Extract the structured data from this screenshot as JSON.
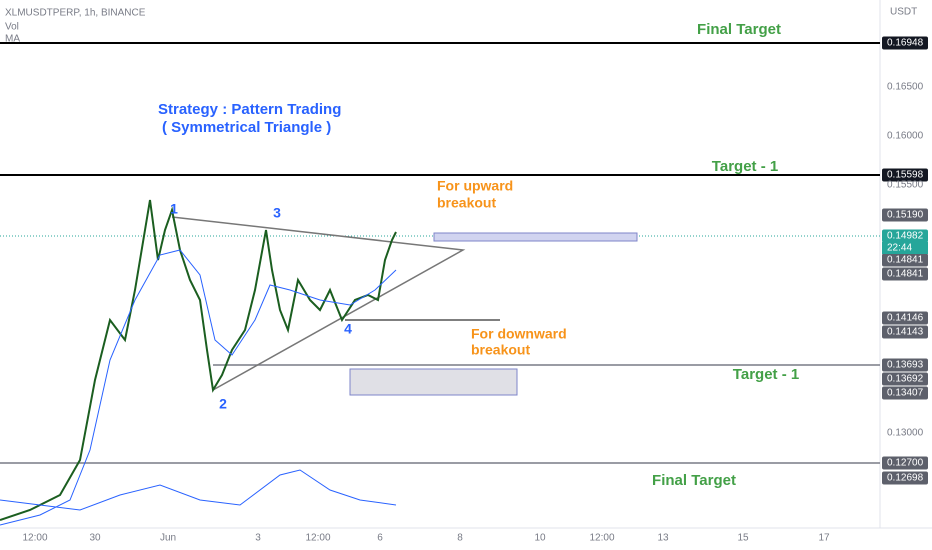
{
  "header": {
    "symbol": "XLMUSDTPERP, 1h, BINANCE",
    "indicators": [
      "Vol",
      "MA"
    ],
    "currency": "USDT"
  },
  "price_axis": {
    "labels": [
      "0.16948",
      "0.16500",
      "0.16000",
      "0.15598",
      "0.15500",
      "0.15190",
      "0.14982",
      "0.14841",
      "0.14841",
      "0.14146",
      "0.14143",
      "0.13693",
      "0.13692",
      "0.13407",
      "0.13000",
      "0.12700",
      "0.12698"
    ],
    "countdown": "22:44"
  },
  "time_axis": {
    "labels": [
      "12:00",
      "30",
      "Jun",
      "3",
      "12:00",
      "6",
      "8",
      "10",
      "12:00",
      "13",
      "15",
      "17"
    ]
  },
  "annotations": {
    "final_target_top": "Final Target",
    "strategy": "Strategy : Pattern Trading",
    "pattern": "( Symmetrical Triangle )",
    "target1_top": "Target - 1",
    "upward_1": "For upward",
    "upward_2": "breakout",
    "downward_1": "For downward",
    "downward_2": "breakout",
    "target1_bottom": "Target - 1",
    "final_target_bottom": "Final Target"
  },
  "wave_labels": [
    "1",
    "2",
    "3",
    "4"
  ]
}
